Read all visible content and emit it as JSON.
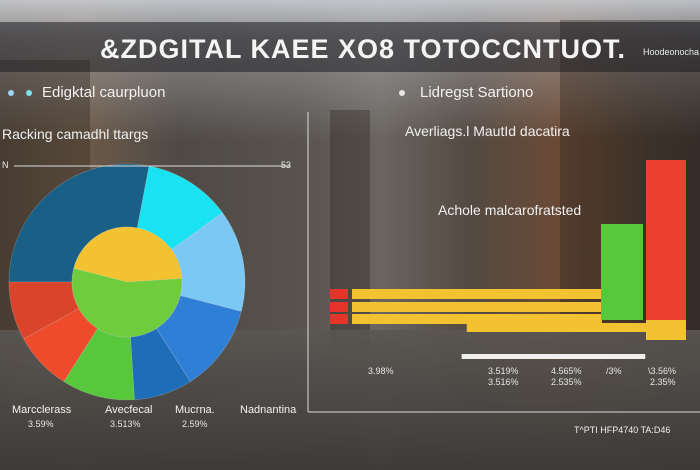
{
  "header": {
    "title": "&ZDGITAL KAEE  XO8 TOTOCCNTUOT.",
    "title_suffix": "Hoodeonocha"
  },
  "left_panel": {
    "title": "Edigktal caurpluon",
    "subtitle": "Racking camadhl ttargs",
    "axis_left": "N",
    "axis_right": "53"
  },
  "right_panel": {
    "title": "Lidregst Sartiono",
    "subtitle": "Averliags.l MautId dacatira",
    "annotation": "Achole malcarofratsted",
    "footer": "T^PTI HFP4740 TA:D46"
  },
  "colors": {
    "accent_blue": "#2f7fd6",
    "accent_teal": "#1a5f86",
    "accent_cyan": "#19e3f2",
    "accent_green": "#57c83c",
    "accent_yellow": "#f2c230",
    "accent_red": "#ee4030"
  },
  "chart_data": [
    {
      "type": "pie",
      "title": "Edigktal caurpluon",
      "subtitle": "Racking camadhl ttargs",
      "outer_ring": [
        {
          "value": 28,
          "color": "#1a5f86"
        },
        {
          "value": 12,
          "color": "#19e3f2"
        },
        {
          "value": 14,
          "color": "#7cc8f4"
        },
        {
          "value": 12,
          "color": "#2f7fd6"
        },
        {
          "value": 8,
          "color": "#1d6db8"
        },
        {
          "value": 10,
          "color": "#57c83c"
        },
        {
          "value": 8,
          "color": "#ee4a2c"
        },
        {
          "value": 8,
          "color": "#d9442a"
        }
      ],
      "inner_ring": [
        {
          "value": 45,
          "color": "#f2c230"
        },
        {
          "value": 55,
          "color": "#6fcc3c"
        }
      ],
      "legend": [
        {
          "label": "Marcclerass",
          "value": "3.59%"
        },
        {
          "label": "Avecfecal",
          "value": "3.513%"
        },
        {
          "label": "Mucrna.",
          "value": "2.59%"
        },
        {
          "label": "Nadnantina",
          "value": ""
        }
      ]
    },
    {
      "type": "bar",
      "title": "Lidregst Sartiono",
      "subtitle": "Averliags.l MautId dacatira",
      "horizontal_bars": [
        {
          "start": 0,
          "end": 98,
          "color": "#f2c230"
        },
        {
          "start": 0,
          "end": 98,
          "color": "#f2c230"
        },
        {
          "start": 0,
          "end": 98,
          "color": "#f2c230"
        },
        {
          "start": 45,
          "end": 118,
          "color": "#f2c230"
        },
        {
          "start": 43,
          "end": 115,
          "color": "#efefef"
        }
      ],
      "red_markers": [
        0,
        1,
        2
      ],
      "vertical_bars": [
        {
          "label": "3.5%",
          "value": 0.6,
          "color": "#57c83c"
        },
        {
          "label": "3.5%",
          "value": 1.0,
          "color": "#ee4030"
        }
      ],
      "tick_values": [
        "3.98%",
        "3.519%",
        "4.565%",
        "/3%",
        "\\3.56%"
      ],
      "tick_subvalues": [
        "",
        "3.516%",
        "2.535%",
        "",
        "2.35%"
      ]
    }
  ]
}
